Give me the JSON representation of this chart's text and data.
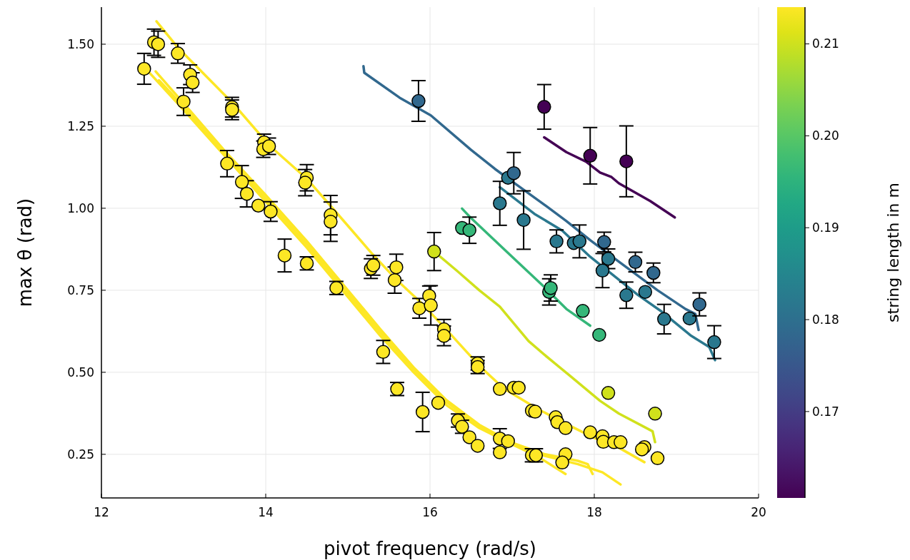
{
  "chart_data": {
    "type": "scatter",
    "xlabel": "pivot frequency (rad/s)",
    "ylabel": "max θ (rad)",
    "clabel": "string length in m",
    "xlim": [
      12,
      20
    ],
    "ylim": [
      0.117,
      1.613
    ],
    "xticks": [
      12,
      14,
      16,
      18,
      20
    ],
    "yticks": [
      {
        "value": 0.25,
        "label": "0.25"
      },
      {
        "value": 0.5,
        "label": "0.50"
      },
      {
        "value": 0.75,
        "label": "0.75"
      },
      {
        "value": 1,
        "label": "1.00"
      },
      {
        "value": 1.25,
        "label": "1.25"
      },
      {
        "value": 1.5,
        "label": "1.50"
      }
    ],
    "clim": [
      0.1606,
      0.214
    ],
    "cticks": [
      {
        "value": 0.17,
        "label": "0.17"
      },
      {
        "value": 0.18,
        "label": "0.18"
      },
      {
        "value": 0.19,
        "label": "0.19"
      },
      {
        "value": 0.2,
        "label": "0.20"
      },
      {
        "value": 0.21,
        "label": "0.21"
      }
    ],
    "grid": true,
    "series": [
      {
        "type": "line",
        "color": "#fde725",
        "x": [
          12.67,
          12.93,
          13.6,
          14.05,
          14.5,
          14.85,
          15.3,
          15.6,
          15.9,
          16.2,
          16.6,
          16.9,
          17.3,
          17.6,
          18.0,
          18.3,
          18.61
        ],
        "values": [
          1.57,
          1.49,
          1.32,
          1.19,
          1.09,
          0.99,
          0.86,
          0.78,
          0.71,
          0.63,
          0.52,
          0.45,
          0.39,
          0.35,
          0.3,
          0.27,
          0.226
        ]
      },
      {
        "type": "line",
        "color": "#fde725",
        "x": [
          12.53,
          13.0,
          13.5,
          14.0,
          14.5,
          15.0,
          15.4,
          15.8,
          16.2,
          16.6,
          17.0,
          17.3,
          17.65
        ],
        "values": [
          1.428,
          1.3,
          1.16,
          1.02,
          0.88,
          0.73,
          0.61,
          0.5,
          0.4,
          0.33,
          0.28,
          0.245,
          0.19
        ]
      },
      {
        "type": "line",
        "color": "#fde725",
        "x": [
          12.66,
          13.0,
          13.5,
          14.0,
          14.5,
          15.0,
          15.4,
          15.8,
          16.2,
          16.6,
          17.0,
          17.4,
          17.8,
          17.92,
          17.98
        ],
        "values": [
          1.417,
          1.32,
          1.175,
          1.04,
          0.9,
          0.75,
          0.63,
          0.515,
          0.415,
          0.34,
          0.285,
          0.25,
          0.23,
          0.22,
          0.19
        ]
      },
      {
        "type": "line",
        "color": "#fde725",
        "x": [
          12.7,
          13.0,
          13.5,
          14.0,
          14.5,
          15.0,
          15.4,
          15.8,
          16.2,
          16.6,
          17.0,
          17.4,
          17.8,
          18.1,
          18.32
        ],
        "values": [
          1.39,
          1.31,
          1.165,
          1.03,
          0.89,
          0.74,
          0.62,
          0.51,
          0.41,
          0.335,
          0.28,
          0.245,
          0.22,
          0.195,
          0.158
        ]
      },
      {
        "type": "line",
        "color": "#d0e11c",
        "x": [
          16.05,
          16.33,
          16.6,
          16.85,
          17.2,
          17.4,
          17.7,
          18.07,
          18.3,
          18.71,
          18.74
        ],
        "values": [
          0.868,
          0.809,
          0.75,
          0.7,
          0.595,
          0.552,
          0.49,
          0.413,
          0.374,
          0.32,
          0.287
        ]
      },
      {
        "type": "line",
        "color": "#35b779",
        "x": [
          16.39,
          16.48,
          16.94,
          17.37,
          17.66,
          17.95
        ],
        "values": [
          0.999,
          0.975,
          0.866,
          0.765,
          0.693,
          0.642
        ]
      },
      {
        "type": "line",
        "color": "#31688e",
        "x": [
          15.19,
          15.2,
          15.63,
          16.01,
          16.5,
          16.79,
          17.03,
          17.43,
          17.66,
          17.95,
          18.3,
          18.77,
          19.11,
          19.23,
          19.27
        ],
        "values": [
          1.433,
          1.413,
          1.337,
          1.283,
          1.178,
          1.12,
          1.076,
          1.004,
          0.961,
          0.903,
          0.837,
          0.75,
          0.693,
          0.678,
          0.629
        ]
      },
      {
        "type": "line",
        "color": "#2a788e",
        "x": [
          16.85,
          17.27,
          17.61,
          17.95,
          18.24,
          18.53,
          18.82,
          19.17,
          19.4,
          19.47
        ],
        "values": [
          1.064,
          0.983,
          0.932,
          0.852,
          0.794,
          0.736,
          0.685,
          0.613,
          0.577,
          0.537
        ]
      },
      {
        "type": "line",
        "color": "#440154",
        "x": [
          17.39,
          17.66,
          17.9,
          18.07,
          18.21,
          18.3,
          18.68,
          18.98
        ],
        "values": [
          1.216,
          1.171,
          1.142,
          1.109,
          1.095,
          1.076,
          1.022,
          0.972
        ]
      },
      {
        "color": "#fde725",
        "marker": "circle",
        "x": [
          12.52,
          12.64,
          12.69,
          12.93,
          13.08,
          13.11,
          13.0,
          13.59,
          13.59,
          13.98,
          13.97,
          14.04,
          13.53,
          13.71,
          13.77,
          13.91,
          14.06,
          14.5,
          14.48,
          14.79,
          14.79,
          14.23,
          14.5,
          14.86,
          15.28,
          15.31,
          15.59,
          15.57,
          15.87,
          15.99,
          16.01,
          16.17,
          16.17,
          15.43,
          15.6,
          16.58,
          16.58,
          16.85,
          17.02,
          17.08,
          15.91,
          16.1,
          16.34,
          16.39,
          16.48,
          16.58,
          16.85,
          16.95,
          16.85,
          17.24,
          17.28,
          17.24,
          17.29,
          17.53,
          17.55,
          17.65,
          17.65,
          17.61,
          17.95,
          18.1,
          18.11,
          18.24,
          18.32,
          18.61,
          18.58,
          18.77
        ],
        "values": [
          1.425,
          1.506,
          1.5,
          1.472,
          1.407,
          1.383,
          1.325,
          1.308,
          1.3,
          1.201,
          1.18,
          1.189,
          1.136,
          1.08,
          1.044,
          1.008,
          0.99,
          1.093,
          1.078,
          0.979,
          0.959,
          0.856,
          0.832,
          0.757,
          0.816,
          0.826,
          0.82,
          0.781,
          0.695,
          0.733,
          0.704,
          0.631,
          0.611,
          0.562,
          0.449,
          0.527,
          0.516,
          0.449,
          0.453,
          0.453,
          0.379,
          0.407,
          0.353,
          0.334,
          0.302,
          0.276,
          0.298,
          0.29,
          0.256,
          0.383,
          0.38,
          0.247,
          0.247,
          0.363,
          0.348,
          0.33,
          0.25,
          0.225,
          0.317,
          0.305,
          0.288,
          0.287,
          0.287,
          0.272,
          0.265,
          0.238
        ],
        "errors": [
          0.047,
          0.04,
          0.04,
          0.03,
          0.03,
          0.03,
          0.042,
          0.03,
          0.03,
          0.025,
          0.025,
          0.025,
          0.04,
          0.05,
          0.04,
          null,
          0.03,
          0.04,
          0.04,
          0.06,
          0.06,
          0.05,
          0.02,
          0.02,
          0.03,
          0.03,
          0.04,
          0.04,
          0.03,
          0.03,
          0.06,
          0.03,
          0.03,
          0.035,
          0.02,
          0.02,
          0.02,
          null,
          null,
          null,
          0.06,
          null,
          0.02,
          0.02,
          null,
          null,
          0.03,
          null,
          null,
          null,
          null,
          0.02,
          0.02,
          null,
          null,
          null,
          null,
          null,
          null,
          null,
          null,
          null,
          null,
          null,
          null,
          null
        ]
      },
      {
        "color": "#d0e11c",
        "marker": "circle",
        "x": [
          16.05,
          18.17,
          18.74
        ],
        "values": [
          0.868,
          0.437,
          0.374
        ],
        "errors": [
          0.058,
          null,
          null
        ]
      },
      {
        "color": "#35b779",
        "marker": "circle",
        "x": [
          16.39,
          16.48,
          17.45,
          17.47,
          17.86,
          18.06
        ],
        "values": [
          0.94,
          0.933,
          0.745,
          0.757,
          0.687,
          0.614
        ],
        "errors": [
          null,
          0.04,
          0.04,
          0.04,
          null,
          null
        ]
      },
      {
        "color": "#2a788e",
        "marker": "circle",
        "x": [
          16.95,
          16.85,
          17.14,
          17.54,
          17.75,
          17.82,
          18.17,
          18.1,
          18.39,
          18.62,
          18.85,
          19.16,
          19.46
        ],
        "values": [
          1.093,
          1.015,
          0.964,
          0.899,
          0.894,
          0.899,
          0.846,
          0.81,
          0.735,
          0.745,
          0.662,
          0.664,
          0.592
        ],
        "errors": [
          null,
          0.067,
          0.089,
          0.035,
          null,
          0.05,
          0.03,
          0.052,
          0.04,
          null,
          0.045,
          null,
          0.05
        ]
      },
      {
        "color": "#31688e",
        "marker": "circle",
        "x": [
          15.86,
          17.02,
          18.12,
          18.5,
          18.72,
          19.28
        ],
        "values": [
          1.327,
          1.107,
          0.897,
          0.836,
          0.803,
          0.707
        ],
        "errors": [
          0.062,
          0.063,
          0.03,
          0.03,
          0.03,
          0.035
        ]
      },
      {
        "color": "#440154",
        "marker": "circle",
        "x": [
          17.39,
          17.95,
          18.39
        ],
        "values": [
          1.309,
          1.16,
          1.143
        ],
        "errors": [
          0.068,
          0.086,
          0.108
        ]
      }
    ]
  }
}
